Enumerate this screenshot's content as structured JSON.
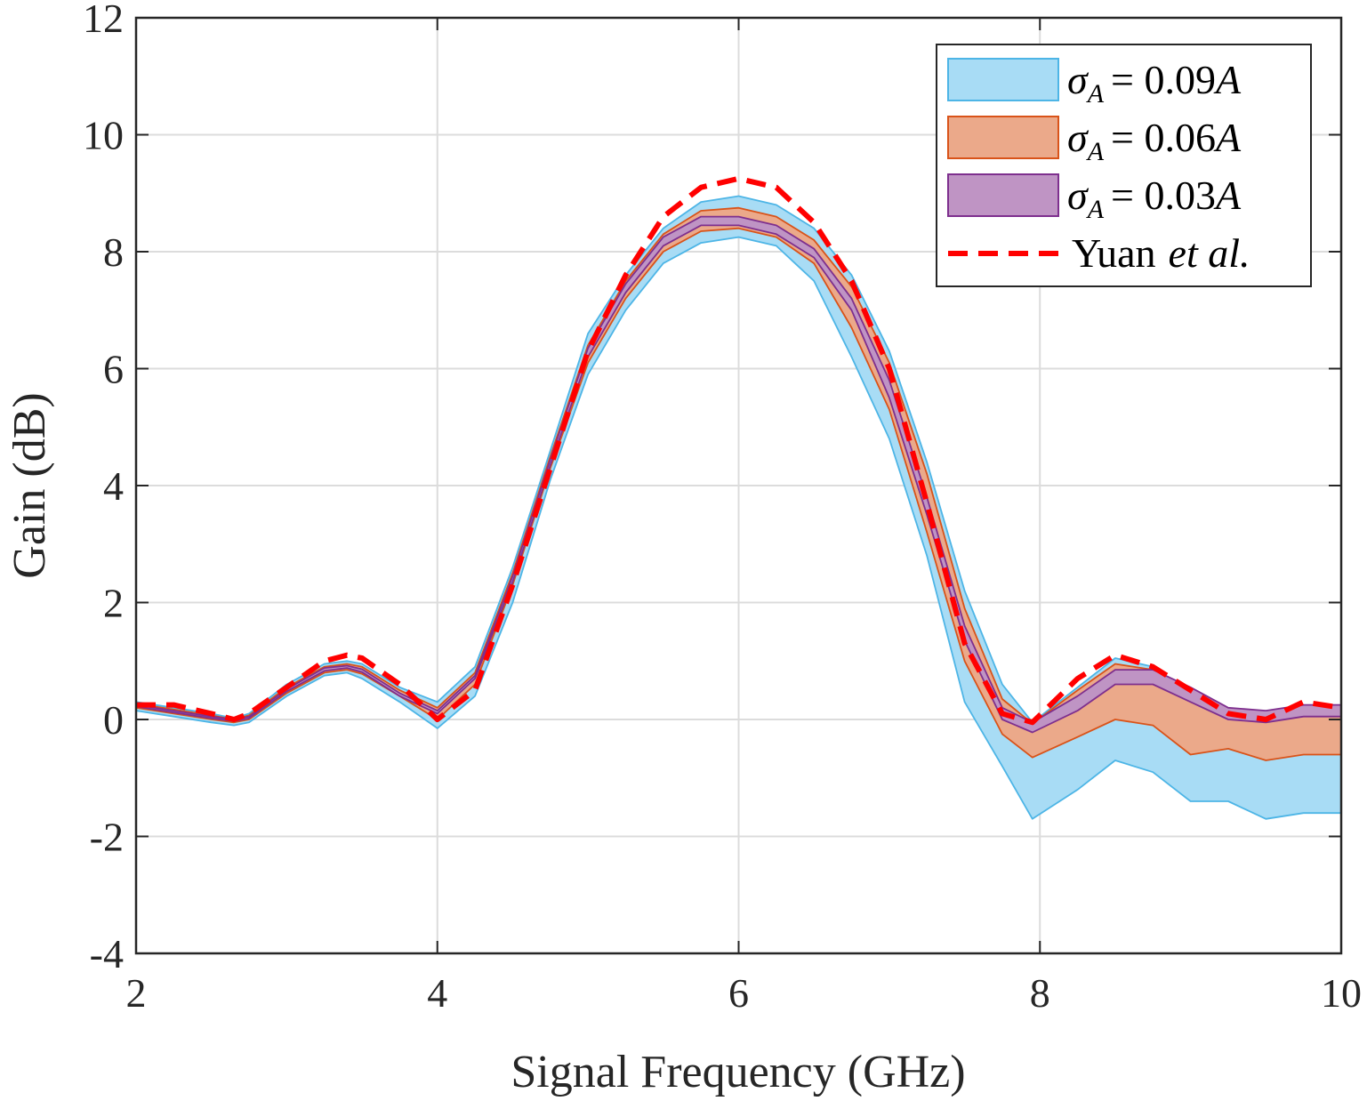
{
  "chart_data": {
    "type": "area",
    "xlabel": "Signal Frequency (GHz)",
    "ylabel": "Gain (dB)",
    "xlim": [
      2,
      10
    ],
    "ylim": [
      -4,
      12
    ],
    "xticks": [
      2,
      4,
      6,
      8,
      10
    ],
    "yticks": [
      -4,
      -2,
      0,
      2,
      4,
      6,
      8,
      10,
      12
    ],
    "xtick_labels": [
      "2",
      "4",
      "6",
      "8",
      "10"
    ],
    "ytick_labels": [
      "-4",
      "-2",
      "0",
      "2",
      "4",
      "6",
      "8",
      "10",
      "12"
    ],
    "grid": true,
    "legend_position": "top-right",
    "x": [
      2.0,
      2.25,
      2.5,
      2.65,
      2.75,
      3.0,
      3.25,
      3.4,
      3.5,
      3.75,
      4.0,
      4.25,
      4.5,
      4.75,
      5.0,
      5.25,
      5.5,
      5.75,
      6.0,
      6.25,
      6.5,
      6.75,
      7.0,
      7.25,
      7.5,
      7.75,
      7.95,
      8.25,
      8.5,
      8.75,
      9.0,
      9.25,
      9.5,
      9.75,
      10.0
    ],
    "series": [
      {
        "name": "σ_A = 0.09A",
        "kind": "band",
        "fill": "#a8dcf5",
        "edge": "#4db5e6",
        "upper": [
          0.3,
          0.2,
          0.1,
          0.02,
          0.1,
          0.6,
          0.95,
          1.0,
          0.95,
          0.55,
          0.3,
          0.9,
          2.6,
          4.6,
          6.6,
          7.6,
          8.4,
          8.85,
          8.95,
          8.8,
          8.4,
          7.6,
          6.3,
          4.4,
          2.2,
          0.6,
          -0.05,
          0.55,
          1.05,
          0.9,
          0.45,
          0.1,
          0.02,
          0.1,
          0.2
        ],
        "lower": [
          0.15,
          0.05,
          -0.05,
          -0.1,
          -0.05,
          0.4,
          0.75,
          0.8,
          0.7,
          0.3,
          -0.15,
          0.4,
          2.0,
          4.1,
          5.9,
          7.0,
          7.8,
          8.15,
          8.25,
          8.1,
          7.5,
          6.2,
          4.8,
          2.8,
          0.3,
          -0.8,
          -1.7,
          -1.2,
          -0.7,
          -0.9,
          -1.4,
          -1.4,
          -1.7,
          -1.6,
          -1.6
        ]
      },
      {
        "name": "σ_A = 0.06A",
        "kind": "band",
        "fill": "#eba98a",
        "edge": "#d95319",
        "upper": [
          0.27,
          0.17,
          0.07,
          0.0,
          0.07,
          0.55,
          0.9,
          0.95,
          0.9,
          0.5,
          0.2,
          0.8,
          2.5,
          4.5,
          6.4,
          7.5,
          8.3,
          8.7,
          8.75,
          8.6,
          8.2,
          7.4,
          6.1,
          4.2,
          1.9,
          0.35,
          -0.07,
          0.5,
          0.95,
          0.85,
          0.4,
          0.1,
          0.05,
          0.1,
          0.15
        ],
        "lower": [
          0.2,
          0.1,
          0.0,
          -0.05,
          0.0,
          0.45,
          0.8,
          0.85,
          0.78,
          0.4,
          0.0,
          0.6,
          2.3,
          4.3,
          6.1,
          7.2,
          8.0,
          8.35,
          8.4,
          8.25,
          7.8,
          6.7,
          5.3,
          3.2,
          1.0,
          -0.25,
          -0.65,
          -0.3,
          0.0,
          -0.1,
          -0.6,
          -0.5,
          -0.7,
          -0.6,
          -0.6
        ]
      },
      {
        "name": "σ_A = 0.03A",
        "kind": "band",
        "fill": "#bf94c4",
        "edge": "#7e2f8e",
        "upper": [
          0.25,
          0.15,
          0.05,
          0.0,
          0.05,
          0.52,
          0.88,
          0.92,
          0.86,
          0.45,
          0.15,
          0.75,
          2.45,
          4.45,
          6.35,
          7.45,
          8.25,
          8.6,
          8.6,
          8.45,
          8.05,
          7.2,
          5.8,
          3.8,
          1.6,
          0.2,
          -0.05,
          0.4,
          0.85,
          0.85,
          0.55,
          0.2,
          0.15,
          0.25,
          0.25
        ],
        "lower": [
          0.22,
          0.12,
          0.02,
          -0.03,
          0.02,
          0.48,
          0.83,
          0.88,
          0.81,
          0.4,
          0.1,
          0.7,
          2.35,
          4.35,
          6.2,
          7.3,
          8.1,
          8.45,
          8.45,
          8.3,
          7.9,
          7.0,
          5.5,
          3.5,
          1.35,
          0.0,
          -0.22,
          0.15,
          0.6,
          0.6,
          0.3,
          0.0,
          -0.05,
          0.05,
          0.05
        ]
      },
      {
        "name": "Yuan et al.",
        "kind": "line",
        "style": "dashed",
        "color": "#ff0000",
        "x": [
          2.0,
          2.25,
          2.5,
          2.65,
          2.75,
          3.0,
          3.25,
          3.4,
          3.5,
          3.75,
          4.0,
          4.1,
          4.25,
          4.5,
          4.75,
          5.0,
          5.25,
          5.5,
          5.75,
          6.0,
          6.25,
          6.5,
          6.75,
          7.0,
          7.25,
          7.5,
          7.75,
          7.95,
          8.25,
          8.5,
          8.75,
          9.0,
          9.25,
          9.5,
          9.75,
          10.0
        ],
        "values": [
          0.25,
          0.25,
          0.1,
          0.0,
          0.1,
          0.55,
          1.0,
          1.1,
          1.05,
          0.6,
          0.0,
          0.2,
          0.5,
          2.3,
          4.3,
          6.3,
          7.6,
          8.6,
          9.1,
          9.25,
          9.1,
          8.5,
          7.5,
          6.0,
          3.7,
          1.3,
          0.1,
          -0.05,
          0.7,
          1.1,
          0.9,
          0.5,
          0.1,
          0.0,
          0.3,
          0.2
        ]
      }
    ]
  },
  "legend": {
    "items": [
      {
        "key": "0.09",
        "text": "= 0.09"
      },
      {
        "key": "0.06",
        "text": "= 0.06"
      },
      {
        "key": "0.03",
        "text": "= 0.03"
      },
      {
        "key": "yuan",
        "text": "Yuan",
        "italic": "et al."
      }
    ]
  }
}
